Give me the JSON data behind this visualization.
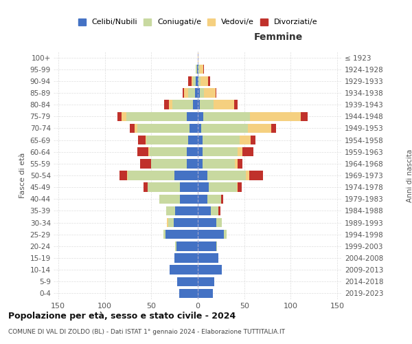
{
  "age_groups": [
    "0-4",
    "5-9",
    "10-14",
    "15-19",
    "20-24",
    "25-29",
    "30-34",
    "35-39",
    "40-44",
    "45-49",
    "50-54",
    "55-59",
    "60-64",
    "65-69",
    "70-74",
    "75-79",
    "80-84",
    "85-89",
    "90-94",
    "95-99",
    "100+"
  ],
  "birth_years": [
    "2019-2023",
    "2014-2018",
    "2009-2013",
    "2004-2008",
    "1999-2003",
    "1994-1998",
    "1989-1993",
    "1984-1988",
    "1979-1983",
    "1974-1978",
    "1969-1973",
    "1964-1968",
    "1959-1963",
    "1954-1958",
    "1949-1953",
    "1944-1948",
    "1939-1943",
    "1934-1938",
    "1929-1933",
    "1924-1928",
    "≤ 1923"
  ],
  "male": {
    "celibi": [
      20,
      22,
      30,
      25,
      23,
      35,
      26,
      24,
      19,
      19,
      25,
      12,
      12,
      10,
      9,
      12,
      5,
      3,
      2,
      1,
      0
    ],
    "coniugati": [
      0,
      0,
      0,
      0,
      1,
      2,
      6,
      10,
      22,
      35,
      50,
      38,
      40,
      45,
      56,
      65,
      22,
      7,
      3,
      1,
      0
    ],
    "vedovi": [
      0,
      0,
      0,
      0,
      0,
      0,
      1,
      0,
      0,
      0,
      1,
      0,
      1,
      1,
      3,
      5,
      4,
      5,
      2,
      0,
      0
    ],
    "divorziati": [
      0,
      0,
      0,
      0,
      0,
      0,
      0,
      0,
      0,
      4,
      8,
      12,
      12,
      8,
      5,
      4,
      5,
      1,
      3,
      0,
      0
    ]
  },
  "female": {
    "nubili": [
      16,
      18,
      26,
      22,
      20,
      28,
      20,
      14,
      10,
      12,
      10,
      5,
      5,
      5,
      4,
      6,
      2,
      2,
      1,
      1,
      0
    ],
    "coniugate": [
      0,
      0,
      0,
      0,
      1,
      3,
      6,
      8,
      15,
      30,
      42,
      35,
      38,
      40,
      50,
      50,
      15,
      5,
      2,
      1,
      0
    ],
    "vedove": [
      0,
      0,
      0,
      0,
      0,
      0,
      0,
      0,
      0,
      1,
      3,
      3,
      5,
      12,
      25,
      55,
      22,
      12,
      8,
      4,
      1
    ],
    "divorziate": [
      0,
      0,
      0,
      0,
      0,
      0,
      0,
      2,
      2,
      4,
      15,
      5,
      12,
      5,
      5,
      7,
      4,
      1,
      2,
      1,
      0
    ]
  },
  "colors": {
    "celibi_nubili": "#4472c4",
    "coniugati": "#c8d9a0",
    "vedovi": "#f5d080",
    "divorziati": "#c0312b"
  },
  "xlim": 155,
  "title": "Popolazione per età, sesso e stato civile - 2024",
  "subtitle": "COMUNE DI VAL DI ZOLDO (BL) - Dati ISTAT 1° gennaio 2024 - Elaborazione TUTTITALIA.IT",
  "ylabel_left": "Fasce di età",
  "ylabel_right": "Anni di nascita",
  "xlabel_femmine": "Femmine",
  "legend_labels": [
    "Celibi/Nubili",
    "Coniugati/e",
    "Vedovi/e",
    "Divorziati/e"
  ],
  "background_color": "#ffffff",
  "grid_color": "#cccccc"
}
